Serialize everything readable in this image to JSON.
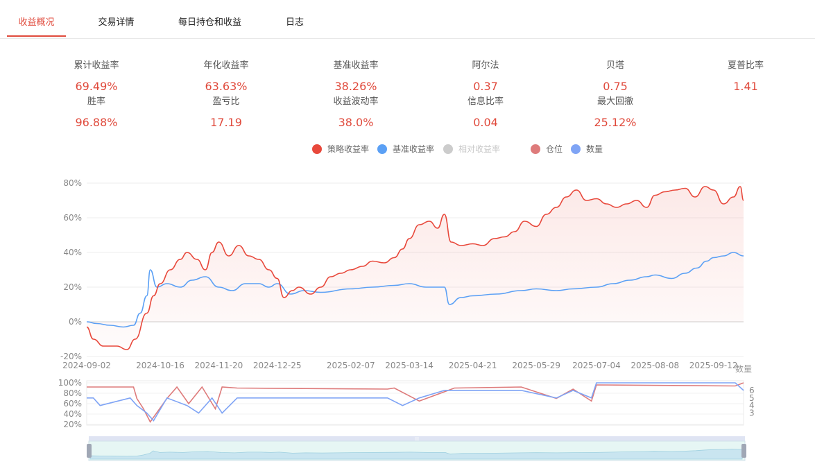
{
  "tabs": [
    {
      "label": "收益概况",
      "active": true
    },
    {
      "label": "交易详情",
      "active": false
    },
    {
      "label": "每日持仓和收益",
      "active": false
    },
    {
      "label": "日志",
      "active": false
    }
  ],
  "metrics_row1": [
    {
      "label": "累计收益率",
      "value": "69.49%"
    },
    {
      "label": "年化收益率",
      "value": "63.63%"
    },
    {
      "label": "基准收益率",
      "value": "38.26%"
    },
    {
      "label": "阿尔法",
      "value": "0.37"
    },
    {
      "label": "贝塔",
      "value": "0.75"
    },
    {
      "label": "夏普比率",
      "value": "1.41"
    }
  ],
  "metrics_row2": [
    {
      "label": "胜率",
      "value": "96.88%"
    },
    {
      "label": "盈亏比",
      "value": "17.19"
    },
    {
      "label": "收益波动率",
      "value": "38.0%"
    },
    {
      "label": "信息比率",
      "value": "0.04"
    },
    {
      "label": "最大回撤",
      "value": "25.12%"
    }
  ],
  "legend": [
    {
      "label": "策略收益率",
      "color": "#e8483b",
      "enabled": true
    },
    {
      "label": "基准收益率",
      "color": "#5ba0f5",
      "enabled": true
    },
    {
      "label": "相对收益率",
      "color": "#cccccc",
      "enabled": false
    },
    {
      "label": "仓位",
      "color": "#de7b7b",
      "enabled": true
    },
    {
      "label": "数量",
      "color": "#7fa4f5",
      "enabled": true
    }
  ],
  "colors": {
    "accent": "#e04a3c",
    "strategy": "#e8483b",
    "benchmark": "#5ba0f5",
    "position": "#de7b7b",
    "quantity": "#7fa4f5"
  },
  "chart_data": [
    {
      "type": "line",
      "y_unit": "%",
      "ylim": [
        -20,
        80
      ],
      "y_ticks": [
        "80%",
        "60%",
        "40%",
        "20%",
        "0%",
        "-20%"
      ],
      "x_ticks": [
        "2024-09-02",
        "2024-10-16",
        "2024-11-20",
        "2024-12-25",
        "2025-02-07",
        "2025-03-14",
        "2025-04-21",
        "2025-05-29",
        "2025-07-04",
        "2025-08-08",
        "2025-09-12"
      ],
      "x_range": [
        "2024-09-02",
        "2025-09-30"
      ],
      "grid": true,
      "series": [
        {
          "name": "策略收益率",
          "x": [
            "2024-09-02",
            "2024-09-06",
            "2024-09-12",
            "2024-09-20",
            "2024-09-26",
            "2024-10-01",
            "2024-10-08",
            "2024-10-12",
            "2024-10-16",
            "2024-10-22",
            "2024-10-28",
            "2024-11-01",
            "2024-11-07",
            "2024-11-12",
            "2024-11-16",
            "2024-11-20",
            "2024-11-26",
            "2024-12-02",
            "2024-12-08",
            "2024-12-14",
            "2024-12-20",
            "2024-12-25",
            "2024-12-29",
            "2025-01-03",
            "2025-01-07",
            "2025-01-14",
            "2025-01-20",
            "2025-01-26",
            "2025-02-01",
            "2025-02-07",
            "2025-02-14",
            "2025-02-20",
            "2025-02-27",
            "2025-03-05",
            "2025-03-10",
            "2025-03-14",
            "2025-03-20",
            "2025-03-26",
            "2025-03-31",
            "2025-04-04",
            "2025-04-08",
            "2025-04-14",
            "2025-04-21",
            "2025-04-27",
            "2025-05-04",
            "2025-05-10",
            "2025-05-16",
            "2025-05-22",
            "2025-05-29",
            "2025-06-04",
            "2025-06-10",
            "2025-06-16",
            "2025-06-22",
            "2025-06-28",
            "2025-07-04",
            "2025-07-10",
            "2025-07-16",
            "2025-07-22",
            "2025-07-28",
            "2025-08-03",
            "2025-08-08",
            "2025-08-14",
            "2025-08-20",
            "2025-08-26",
            "2025-09-01",
            "2025-09-07",
            "2025-09-12",
            "2025-09-18",
            "2025-09-24",
            "2025-09-28",
            "2025-09-30"
          ],
          "values": [
            -3,
            -10,
            -14,
            -14,
            -16,
            -10,
            5,
            15,
            22,
            30,
            36,
            40,
            36,
            30,
            40,
            46,
            38,
            44,
            38,
            36,
            30,
            25,
            14,
            18,
            20,
            16,
            20,
            26,
            28,
            30,
            32,
            35,
            34,
            37,
            42,
            48,
            56,
            58,
            54,
            62,
            46,
            44,
            45,
            44,
            48,
            49,
            52,
            58,
            55,
            62,
            66,
            72,
            76,
            70,
            71,
            68,
            66,
            68,
            70,
            66,
            73,
            75,
            76,
            77,
            72,
            78,
            76,
            68,
            72,
            78,
            70
          ]
        },
        {
          "name": "基准收益率",
          "x": [
            "2024-09-02",
            "2024-09-08",
            "2024-09-16",
            "2024-09-24",
            "2024-09-30",
            "2024-10-04",
            "2024-10-08",
            "2024-10-10",
            "2024-10-14",
            "2024-10-20",
            "2024-10-28",
            "2024-11-04",
            "2024-11-12",
            "2024-11-20",
            "2024-11-28",
            "2024-12-06",
            "2024-12-14",
            "2024-12-20",
            "2024-12-25",
            "2025-01-02",
            "2025-01-10",
            "2025-01-20",
            "2025-02-07",
            "2025-02-20",
            "2025-03-05",
            "2025-03-14",
            "2025-03-24",
            "2025-04-04",
            "2025-04-07",
            "2025-04-14",
            "2025-04-21",
            "2025-05-05",
            "2025-05-20",
            "2025-05-29",
            "2025-06-10",
            "2025-06-20",
            "2025-07-04",
            "2025-07-14",
            "2025-07-24",
            "2025-08-03",
            "2025-08-08",
            "2025-08-18",
            "2025-08-26",
            "2025-09-02",
            "2025-09-08",
            "2025-09-12",
            "2025-09-18",
            "2025-09-24",
            "2025-09-30"
          ],
          "values": [
            0,
            -1,
            -2,
            -3,
            -2,
            5,
            15,
            30,
            20,
            22,
            20,
            24,
            26,
            20,
            18,
            22,
            22,
            20,
            22,
            16,
            18,
            17,
            19,
            20,
            21,
            22,
            20,
            20,
            10,
            14,
            15,
            16,
            18,
            19,
            18,
            19,
            20,
            22,
            24,
            26,
            27,
            25,
            28,
            31,
            35,
            37,
            38,
            40,
            38
          ]
        }
      ]
    },
    {
      "type": "line",
      "left_axis": {
        "name": "仓位",
        "ticks": [
          "100%",
          "80%",
          "60%",
          "40%",
          "20%"
        ],
        "range": [
          20,
          100
        ]
      },
      "right_axis": {
        "name": "数量",
        "ticks": [
          "6",
          "5",
          "4",
          "3"
        ],
        "range": [
          1.5,
          7
        ]
      },
      "x_range": [
        "2024-09-02",
        "2025-09-30"
      ],
      "series": [
        {
          "name": "仓位",
          "x": [
            "2024-09-02",
            "2024-09-30",
            "2024-10-02",
            "2024-10-06",
            "2024-10-10",
            "2024-10-20",
            "2024-10-26",
            "2024-11-02",
            "2024-11-10",
            "2024-11-18",
            "2024-11-22",
            "2024-12-01",
            "2025-03-01",
            "2025-03-05",
            "2025-03-20",
            "2025-04-10",
            "2025-05-20",
            "2025-06-10",
            "2025-06-20",
            "2025-07-01",
            "2025-07-04",
            "2025-09-25",
            "2025-09-30"
          ],
          "values": [
            92,
            92,
            70,
            50,
            25,
            70,
            92,
            60,
            92,
            50,
            92,
            90,
            88,
            90,
            65,
            90,
            92,
            70,
            88,
            65,
            96,
            94,
            100
          ]
        },
        {
          "name": "数量",
          "x": [
            "2024-09-02",
            "2024-09-06",
            "2024-09-10",
            "2024-09-28",
            "2024-10-02",
            "2024-10-08",
            "2024-10-12",
            "2024-10-20",
            "2024-11-01",
            "2024-11-08",
            "2024-11-16",
            "2024-11-22",
            "2024-12-01",
            "2025-03-01",
            "2025-03-10",
            "2025-03-20",
            "2025-04-04",
            "2025-05-20",
            "2025-06-10",
            "2025-06-20",
            "2025-07-01",
            "2025-07-04",
            "2025-09-25",
            "2025-09-30"
          ],
          "values": [
            5,
            5,
            4,
            5,
            4,
            3,
            2,
            5,
            4,
            3,
            5,
            3,
            5,
            5,
            4,
            5,
            6,
            6,
            5,
            6,
            5,
            7,
            7,
            6
          ]
        }
      ]
    }
  ]
}
